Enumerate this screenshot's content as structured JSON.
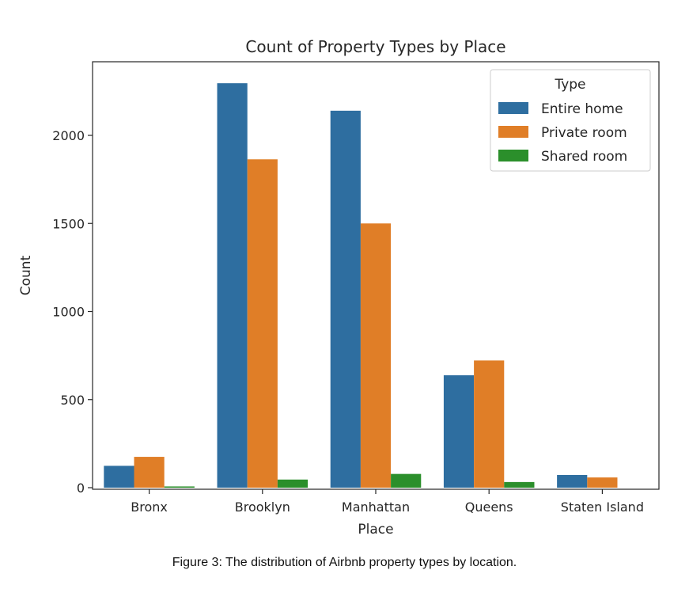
{
  "caption": "Figure 3: The distribution of Airbnb property types by location.",
  "chart_data": {
    "type": "bar",
    "title": "Count of Property Types by Place",
    "xlabel": "Place",
    "ylabel": "Count",
    "categories": [
      "Bronx",
      "Brooklyn",
      "Manhattan",
      "Queens",
      "Staten Island"
    ],
    "series": [
      {
        "name": "Entire home",
        "color": "#2e6ea0",
        "values": [
          124,
          2296,
          2140,
          638,
          72
        ]
      },
      {
        "name": "Private room",
        "color": "#e07e27",
        "values": [
          175,
          1864,
          1500,
          722,
          58
        ]
      },
      {
        "name": "Shared room",
        "color": "#2b8f2b",
        "values": [
          7,
          46,
          78,
          32,
          0
        ]
      }
    ],
    "yticks": [
      0,
      500,
      1000,
      1500,
      2000
    ],
    "ylim": [
      0,
      2410
    ],
    "legend": {
      "title": "Type",
      "placement": "top-right"
    },
    "grid": false
  }
}
